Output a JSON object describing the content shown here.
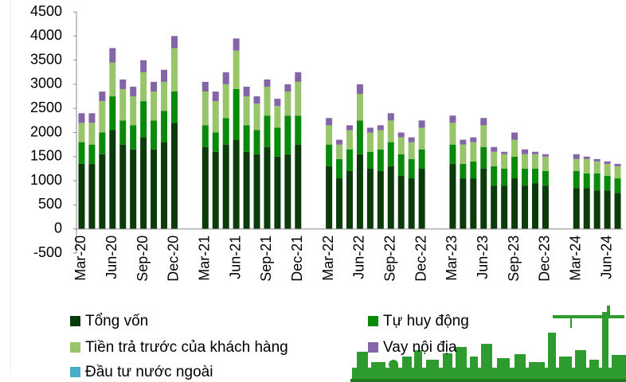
{
  "chart_data": {
    "type": "stacked_bar",
    "categories": [
      "Mar-20",
      null,
      null,
      "Jun-20",
      null,
      null,
      "Sep-20",
      null,
      null,
      "Dec-20",
      null,
      null,
      "Mar-21",
      null,
      null,
      "Jun-21",
      null,
      null,
      "Sep-21",
      null,
      null,
      "Dec-21",
      null,
      null,
      "Mar-22",
      null,
      null,
      "Jun-22",
      null,
      null,
      "Sep-22",
      null,
      null,
      "Dec-22",
      null,
      null,
      "Mar-23",
      null,
      null,
      "Jun-23",
      null,
      null,
      "Sep-23",
      null,
      null,
      "Dec-23",
      null,
      null,
      "Mar-24",
      null,
      null,
      "Jun-24",
      null
    ],
    "series": [
      {
        "name": "Tổng vốn",
        "color": "#0b3a0b",
        "values": [
          1350,
          1350,
          1550,
          2050,
          1750,
          1650,
          1900,
          1650,
          1800,
          2200,
          null,
          null,
          1700,
          1600,
          1750,
          1850,
          1600,
          1550,
          1700,
          1500,
          1550,
          1750,
          null,
          null,
          1300,
          1050,
          1200,
          1550,
          1250,
          1200,
          1300,
          1100,
          1050,
          1250,
          null,
          null,
          1350,
          1050,
          1050,
          1250,
          900,
          900,
          1050,
          900,
          950,
          900,
          null,
          null,
          850,
          850,
          800,
          800,
          750
        ]
      },
      {
        "name": "Tự huy động",
        "color": "#0a8a0a",
        "values": [
          450,
          400,
          450,
          700,
          500,
          500,
          750,
          600,
          650,
          650,
          null,
          null,
          450,
          400,
          550,
          1050,
          550,
          500,
          650,
          600,
          800,
          600,
          null,
          null,
          450,
          400,
          450,
          700,
          350,
          450,
          500,
          450,
          400,
          400,
          null,
          null,
          400,
          300,
          350,
          450,
          400,
          350,
          450,
          350,
          300,
          300,
          null,
          null,
          350,
          300,
          350,
          300,
          300
        ]
      },
      {
        "name": "Tiền trả trước của khách hàng",
        "color": "#98c46a",
        "values": [
          400,
          450,
          650,
          700,
          650,
          600,
          600,
          600,
          600,
          900,
          null,
          null,
          700,
          650,
          700,
          800,
          600,
          550,
          600,
          450,
          500,
          700,
          null,
          null,
          400,
          300,
          400,
          550,
          400,
          400,
          450,
          350,
          350,
          450,
          null,
          null,
          450,
          400,
          400,
          450,
          300,
          300,
          350,
          300,
          300,
          300,
          null,
          null,
          250,
          300,
          250,
          250,
          250
        ]
      },
      {
        "name": "Vay nội địa",
        "color": "#8466a8",
        "values": [
          200,
          200,
          200,
          300,
          200,
          200,
          250,
          200,
          250,
          250,
          null,
          null,
          200,
          200,
          250,
          250,
          200,
          150,
          150,
          150,
          150,
          200,
          null,
          null,
          150,
          100,
          100,
          200,
          100,
          100,
          150,
          100,
          100,
          150,
          null,
          null,
          150,
          100,
          100,
          150,
          100,
          50,
          150,
          100,
          50,
          50,
          null,
          null,
          100,
          50,
          50,
          50,
          50
        ]
      },
      {
        "name": "Đầu tư nước ngoài",
        "color": "#4bacc6",
        "values": [
          0,
          0,
          0,
          0,
          0,
          0,
          0,
          0,
          0,
          0,
          null,
          null,
          0,
          0,
          0,
          0,
          0,
          0,
          0,
          0,
          0,
          0,
          null,
          null,
          0,
          0,
          0,
          0,
          0,
          0,
          0,
          0,
          0,
          0,
          null,
          null,
          0,
          0,
          0,
          0,
          0,
          0,
          0,
          0,
          0,
          0,
          null,
          null,
          0,
          0,
          0,
          0,
          0
        ]
      }
    ],
    "ylim": [
      -500,
      4500
    ],
    "yticks": [
      -500,
      0,
      500,
      1000,
      1500,
      2000,
      2500,
      3000,
      3500,
      4000,
      4500
    ],
    "grid": false
  }
}
